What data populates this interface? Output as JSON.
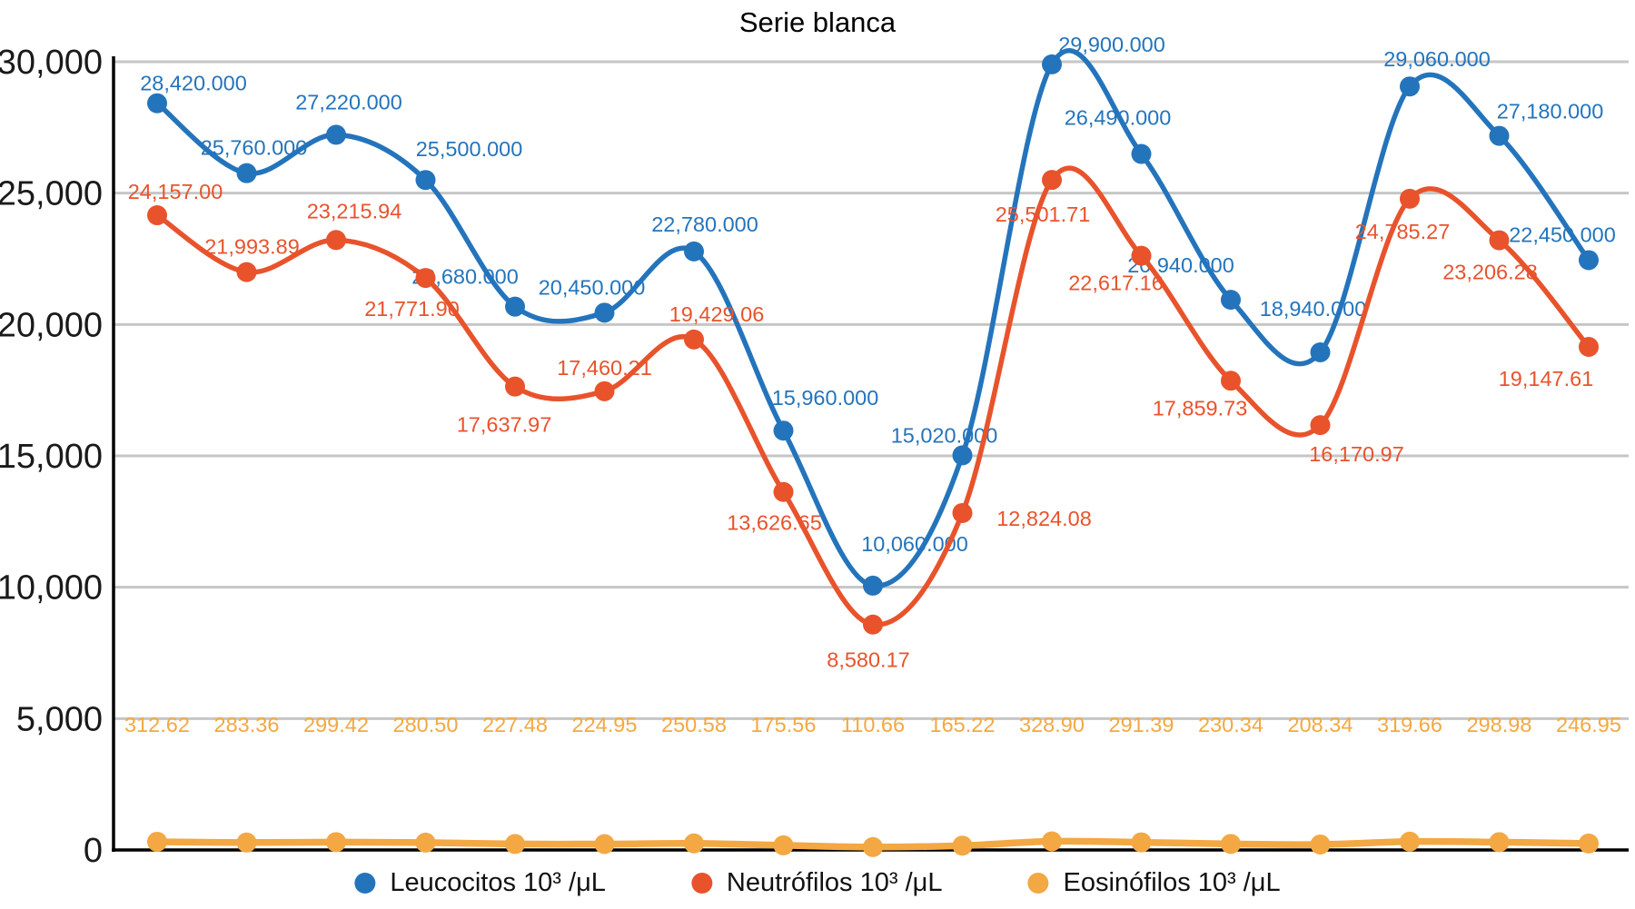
{
  "chart_data": {
    "type": "line",
    "title": "Serie blanca",
    "line_style": "smooth-spline",
    "grid": "horizontal",
    "legend_position": "bottom",
    "x_axis": {
      "tick_labels_visible": false,
      "point_count": 17
    },
    "y_axis": {
      "min": 0,
      "max": 30000,
      "tick_values": [
        0,
        5000,
        10000,
        15000,
        20000,
        25000,
        30000
      ],
      "tick_labels": [
        "0",
        "5,000",
        "10,000",
        "15,000",
        "20,000",
        "25,000",
        "30,000"
      ]
    },
    "series": [
      {
        "name": "Leucocitos 10³ /μL",
        "color": "#2474BC",
        "values": [
          28420,
          25760,
          27220,
          25500,
          20680,
          20450,
          22780,
          15960,
          10060,
          15020,
          29900,
          26490,
          20940,
          18940,
          29060,
          27180,
          22450
        ],
        "labels": [
          "28,420.000",
          "25,760.000",
          "27,220.000",
          "25,500.000",
          "20,680.000",
          "20,450.000",
          "22,780.000",
          "15,960.000",
          "10,060.000",
          "15,020.000",
          "29,900.000",
          "26,490.000",
          "20,940.000",
          "18,940.000",
          "29,060.000",
          "27,180.000",
          "22,450.000"
        ]
      },
      {
        "name": "Neutrófilos 10³ /μL",
        "color": "#E8532C",
        "values": [
          24157.0,
          21993.89,
          23215.94,
          21771.9,
          17637.97,
          17460.21,
          19429.06,
          13626.65,
          8580.17,
          12824.08,
          25501.71,
          22617.16,
          17859.73,
          16170.97,
          24785.27,
          23206.28,
          19147.61
        ],
        "labels": [
          "24,157.00",
          "21,993.89",
          "23,215.94",
          "21,771.90",
          "17,637.97",
          "17,460.21",
          "19,429.06",
          "13,626.65",
          "8,580.17",
          "12,824.08",
          "25,501.71",
          "22,617.16",
          "17,859.73",
          "16,170.97",
          "24,785.27",
          "23,206.28",
          "19,147.61"
        ]
      },
      {
        "name": "Eosinófilos 10³ /μL",
        "color": "#F3A843",
        "values": [
          312.62,
          283.36,
          299.42,
          280.5,
          227.48,
          224.95,
          250.58,
          175.56,
          110.66,
          165.22,
          328.9,
          291.39,
          230.34,
          208.34,
          319.66,
          298.98,
          246.95
        ],
        "labels": [
          "312.62",
          "283.36",
          "299.42",
          "280.50",
          "227.48",
          "224.95",
          "250.58",
          "175.56",
          "110.66",
          "165.22",
          "328.90",
          "291.39",
          "230.34",
          "208.34",
          "319.66",
          "298.98",
          "246.95"
        ]
      }
    ],
    "colors": {
      "axis": "#000000",
      "gridline": "#C6C6C6",
      "tick_label": "#1a1a1a",
      "legend_text": "#111111"
    }
  }
}
